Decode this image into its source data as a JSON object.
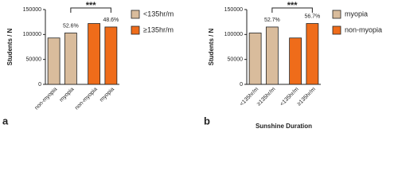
{
  "chart_data": [
    {
      "type": "bar",
      "panel": "a",
      "y_label": "Students / N",
      "categories": [
        "non-myopia",
        "myopia",
        "non-myopia",
        "myopia"
      ],
      "series": [
        {
          "name": "<135hr/m",
          "color": "#d9bc9c",
          "values": [
            93000,
            103000,
            null,
            null
          ]
        },
        {
          "name": "≥135hr/m",
          "color": "#ef6c1a",
          "values": [
            null,
            null,
            122000,
            115000
          ]
        }
      ],
      "percent_labels": [
        null,
        "52.6%",
        null,
        "48.6%"
      ],
      "significance": "***",
      "ylim": [
        0,
        150000
      ],
      "yticks": [
        0,
        50000,
        100000,
        150000
      ]
    },
    {
      "type": "bar",
      "panel": "b",
      "y_label": "Students / N",
      "x_label": "Sunshine Duration",
      "categories": [
        "<135hr/m",
        "≥135hr/m",
        "<135hr/m",
        "≥135hr/m"
      ],
      "series": [
        {
          "name": "myopia",
          "color": "#d9bc9c",
          "values": [
            103000,
            115000,
            null,
            null
          ]
        },
        {
          "name": "non-myopia",
          "color": "#ef6c1a",
          "values": [
            null,
            null,
            93000,
            122000
          ]
        }
      ],
      "percent_labels": [
        null,
        "52.7%",
        null,
        "56.7%"
      ],
      "significance": "***",
      "ylim": [
        0,
        150000
      ],
      "yticks": [
        0,
        50000,
        100000,
        150000
      ]
    }
  ]
}
